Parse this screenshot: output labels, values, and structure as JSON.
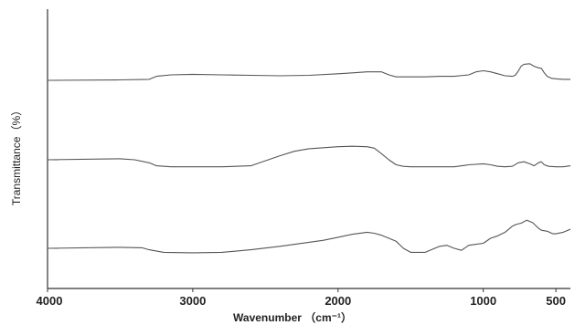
{
  "chart_data": {
    "type": "line",
    "title": "",
    "xlabel": "Wavenumber （cm⁻¹）",
    "ylabel": "Transmittance（%）",
    "xlim": [
      4000,
      400
    ],
    "x_reversed": true,
    "xticks": [
      4000,
      3000,
      2000,
      1000,
      500
    ],
    "yticks_shown": false,
    "grid": false,
    "legend": "none",
    "colors": {
      "curve": "#555555",
      "axis": "#333333"
    },
    "series": [
      {
        "points": [
          [
            4000,
            20
          ],
          [
            3500,
            21
          ],
          [
            3300,
            22
          ],
          [
            3250,
            28
          ],
          [
            3150,
            31
          ],
          [
            3000,
            32
          ],
          [
            2800,
            31
          ],
          [
            2600,
            30
          ],
          [
            2400,
            29
          ],
          [
            2200,
            30
          ],
          [
            2000,
            33
          ],
          [
            1900,
            35
          ],
          [
            1800,
            37
          ],
          [
            1700,
            37
          ],
          [
            1650,
            31
          ],
          [
            1600,
            27
          ],
          [
            1500,
            27
          ],
          [
            1400,
            27
          ],
          [
            1300,
            28
          ],
          [
            1200,
            28
          ],
          [
            1100,
            31
          ],
          [
            1050,
            37
          ],
          [
            1000,
            39
          ],
          [
            950,
            37
          ],
          [
            900,
            33
          ],
          [
            850,
            29
          ],
          [
            800,
            28
          ],
          [
            780,
            30
          ],
          [
            760,
            38
          ],
          [
            740,
            48
          ],
          [
            720,
            52
          ],
          [
            680,
            53
          ],
          [
            650,
            48
          ],
          [
            620,
            45
          ],
          [
            600,
            44
          ],
          [
            580,
            35
          ],
          [
            560,
            28
          ],
          [
            530,
            24
          ],
          [
            500,
            23
          ],
          [
            450,
            22
          ],
          [
            400,
            22
          ]
        ]
      },
      {
        "points": [
          [
            4000,
            98
          ],
          [
            3500,
            100
          ],
          [
            3400,
            98
          ],
          [
            3300,
            92
          ],
          [
            3250,
            86
          ],
          [
            3150,
            84
          ],
          [
            3000,
            84
          ],
          [
            2800,
            84
          ],
          [
            2600,
            86
          ],
          [
            2500,
            96
          ],
          [
            2400,
            106
          ],
          [
            2300,
            115
          ],
          [
            2200,
            120
          ],
          [
            2000,
            124
          ],
          [
            1900,
            125
          ],
          [
            1800,
            124
          ],
          [
            1750,
            121
          ],
          [
            1700,
            110
          ],
          [
            1650,
            98
          ],
          [
            1600,
            88
          ],
          [
            1550,
            85
          ],
          [
            1500,
            84
          ],
          [
            1400,
            84
          ],
          [
            1200,
            84
          ],
          [
            1100,
            88
          ],
          [
            1000,
            90
          ],
          [
            950,
            88
          ],
          [
            900,
            85
          ],
          [
            850,
            84
          ],
          [
            800,
            85
          ],
          [
            760,
            92
          ],
          [
            720,
            94
          ],
          [
            680,
            90
          ],
          [
            650,
            86
          ],
          [
            620,
            92
          ],
          [
            600,
            94
          ],
          [
            580,
            88
          ],
          [
            550,
            85
          ],
          [
            500,
            84
          ],
          [
            450,
            84
          ],
          [
            400,
            86
          ]
        ]
      },
      {
        "points": [
          [
            4000,
            178
          ],
          [
            3500,
            180
          ],
          [
            3350,
            179
          ],
          [
            3300,
            175
          ],
          [
            3200,
            170
          ],
          [
            3000,
            169
          ],
          [
            2800,
            170
          ],
          [
            2600,
            175
          ],
          [
            2400,
            182
          ],
          [
            2200,
            190
          ],
          [
            2100,
            194
          ],
          [
            2000,
            200
          ],
          [
            1900,
            206
          ],
          [
            1800,
            210
          ],
          [
            1750,
            208
          ],
          [
            1700,
            204
          ],
          [
            1650,
            198
          ],
          [
            1600,
            192
          ],
          [
            1550,
            178
          ],
          [
            1500,
            170
          ],
          [
            1400,
            170
          ],
          [
            1300,
            182
          ],
          [
            1250,
            184
          ],
          [
            1200,
            178
          ],
          [
            1150,
            174
          ],
          [
            1100,
            184
          ],
          [
            1050,
            186
          ],
          [
            1000,
            188
          ],
          [
            950,
            198
          ],
          [
            900,
            203
          ],
          [
            850,
            210
          ],
          [
            800,
            222
          ],
          [
            770,
            226
          ],
          [
            740,
            228
          ],
          [
            700,
            234
          ],
          [
            660,
            229
          ],
          [
            620,
            218
          ],
          [
            600,
            214
          ],
          [
            560,
            212
          ],
          [
            520,
            207
          ],
          [
            500,
            207
          ],
          [
            450,
            210
          ],
          [
            400,
            216
          ]
        ]
      }
    ]
  }
}
